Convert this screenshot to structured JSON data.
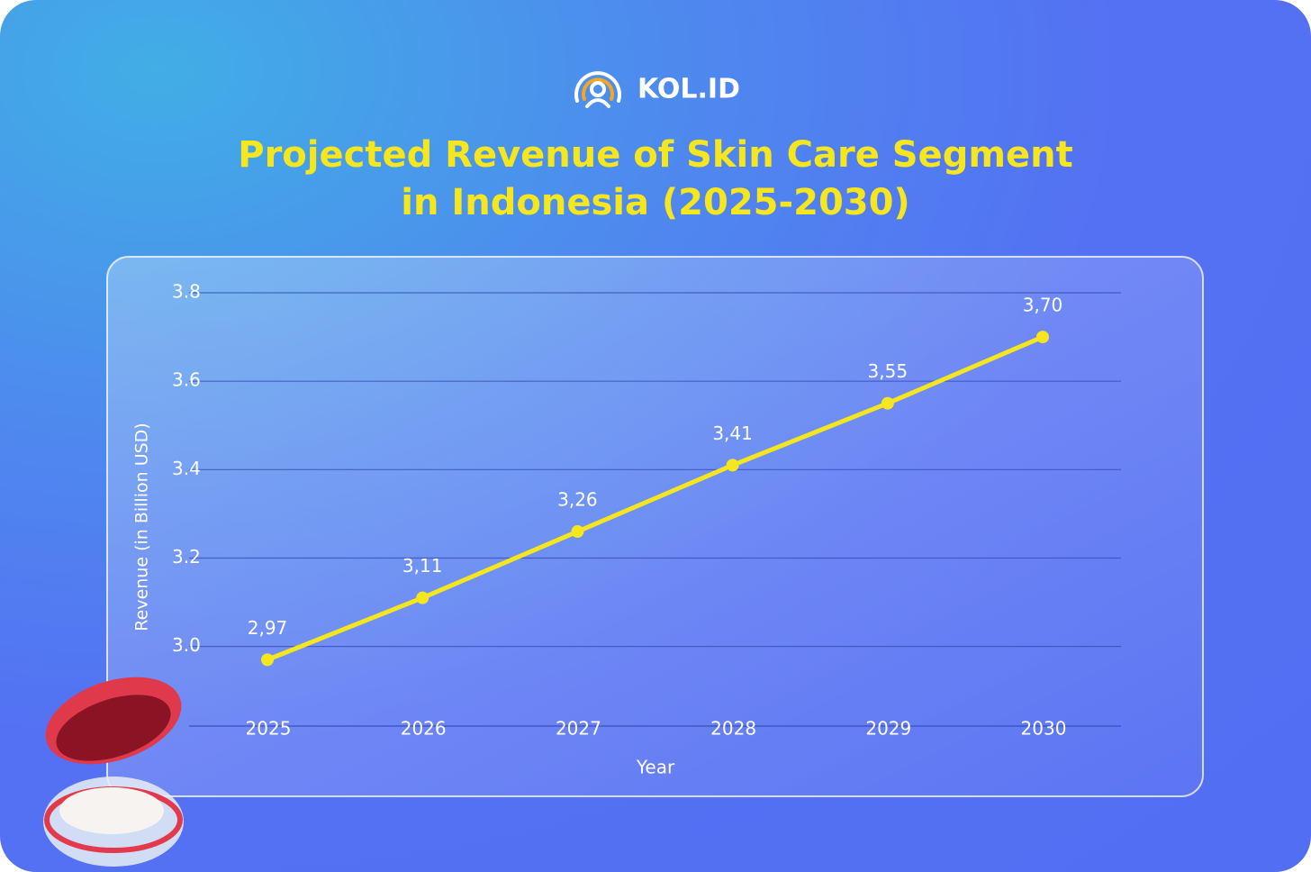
{
  "logo": "KOL.ID",
  "chart_data": {
    "type": "line",
    "title": [
      "Projected Revenue of Skin Care Segment",
      "in Indonesia (2025-2030)"
    ],
    "x_label": "Year",
    "y_label": "Revenue (in Billion USD)",
    "categories": [
      "2025",
      "2026",
      "2027",
      "2028",
      "2029",
      "2030"
    ],
    "series": [
      {
        "name": "Revenue",
        "color": "#f6e61d",
        "values": [
          2.97,
          3.11,
          3.26,
          3.41,
          3.55,
          3.7
        ],
        "value_labels": [
          "2,97",
          "3,11",
          "3,26",
          "3,41",
          "3,55",
          "3,70"
        ]
      }
    ],
    "ylim": [
      2.82,
      3.8
    ],
    "yticks": [
      {
        "value": 3.0,
        "label": "3.0"
      },
      {
        "value": 3.2,
        "label": "3.2"
      },
      {
        "value": 3.4,
        "label": "3.4"
      },
      {
        "value": 3.6,
        "label": "3.6"
      },
      {
        "value": 3.8,
        "label": "3.8"
      }
    ],
    "grid": true
  }
}
